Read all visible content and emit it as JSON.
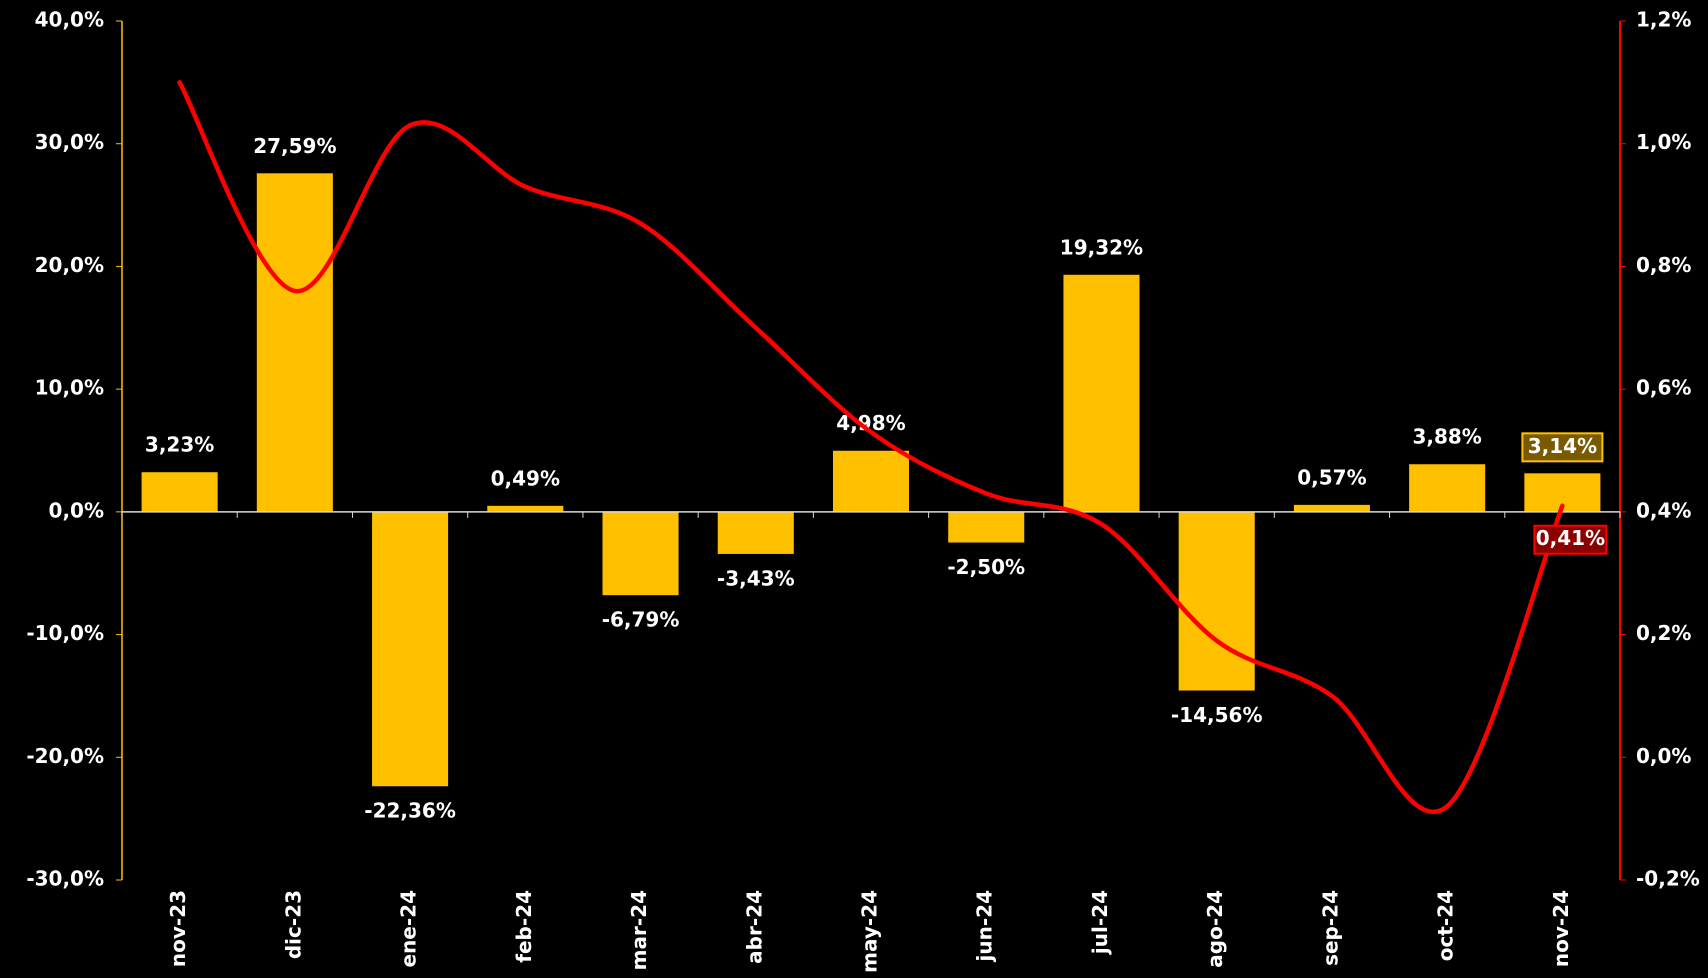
{
  "chart_data": {
    "type": "bar",
    "categories": [
      "nov-23",
      "dic-23",
      "ene-24",
      "feb-24",
      "mar-24",
      "abr-24",
      "may-24",
      "jun-24",
      "jul-24",
      "ago-24",
      "sep-24",
      "oct-24",
      "nov-24"
    ],
    "series": [
      {
        "type": "bar",
        "color": "#FFC000",
        "values": [
          3.23,
          27.59,
          -22.36,
          0.49,
          -6.79,
          -3.43,
          4.98,
          -2.5,
          19.32,
          -14.56,
          0.57,
          3.88,
          3.14
        ],
        "value_labels": [
          "3,23%",
          "27,59%",
          "-22,36%",
          "0,49%",
          "-6,79%",
          "-3,43%",
          "4,98%",
          "-2,50%",
          "19,32%",
          "-14,56%",
          "0,57%",
          "3,88%",
          "3,14%"
        ]
      },
      {
        "type": "line",
        "axis": "y2",
        "color": "#FF0000",
        "values": [
          1.1,
          0.76,
          1.03,
          0.93,
          0.87,
          0.7,
          0.53,
          0.43,
          0.38,
          0.19,
          0.1,
          -0.08,
          0.41
        ],
        "value_labels": [
          null,
          null,
          null,
          null,
          null,
          null,
          null,
          null,
          null,
          null,
          null,
          null,
          "0,41%"
        ]
      }
    ],
    "ylim": [
      -30,
      40
    ],
    "yticks": [
      {
        "value": -30,
        "label": "-30,0%"
      },
      {
        "value": -20,
        "label": "-20,0%"
      },
      {
        "value": -10,
        "label": "-10,0%"
      },
      {
        "value": 0,
        "label": "0,0%"
      },
      {
        "value": 10,
        "label": "10,0%"
      },
      {
        "value": 20,
        "label": "20,0%"
      },
      {
        "value": 30,
        "label": "30,0%"
      },
      {
        "value": 40,
        "label": "40,0%"
      }
    ],
    "y2lim": [
      -0.2,
      1.2
    ],
    "y2ticks": [
      {
        "value": -0.2,
        "label": "-0,2%"
      },
      {
        "value": 0,
        "label": "0,0%"
      },
      {
        "value": 0.2,
        "label": "0,2%"
      },
      {
        "value": 0.4,
        "label": "0,4%"
      },
      {
        "value": 0.6,
        "label": "0,6%"
      },
      {
        "value": 0.8,
        "label": "0,8%"
      },
      {
        "value": 1.0,
        "label": "1,0%"
      },
      {
        "value": 1.2,
        "label": "1,2%"
      }
    ],
    "grid": false
  }
}
